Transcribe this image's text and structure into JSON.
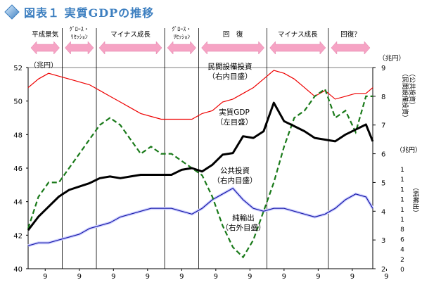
{
  "title": "図表１ 実質GDPの推移",
  "colors": {
    "gdp": "#000000",
    "capex": "#ee0000",
    "public": "#1a1aa8",
    "public_fill": "#cdd0ff",
    "net_exports": "#1a7a1a",
    "arrow": "#f6a3c4",
    "arrow_edge": "#e07aa6",
    "title": "#3d7fc0"
  },
  "phases": [
    {
      "label": "平成景気",
      "from": 0,
      "to": 10
    },
    {
      "label": "ｸﾞﾛｰｽ・\nﾘｾｯｼｮﾝ",
      "from": 10,
      "to": 20
    },
    {
      "label": "マイナス成長",
      "from": 20,
      "to": 40
    },
    {
      "label": "ｸﾞﾛｰｽ・\nﾘｾｯｼｮﾝ",
      "from": 40,
      "to": 50
    },
    {
      "label": "回　復",
      "from": 50,
      "to": 70
    },
    {
      "label": "マイナス成長",
      "from": 70,
      "to": 88
    },
    {
      "label": "回復？",
      "from": 88,
      "to": 101
    }
  ],
  "chart_data": {
    "type": "line",
    "x_tick_labels": [
      "9",
      "9",
      "9",
      "9",
      "9",
      "9",
      "9",
      "9",
      "9",
      "9",
      "9"
    ],
    "left_axis": {
      "unit": "（兆円）",
      "ylim": [
        40,
        52
      ],
      "ticks": [
        40,
        42,
        44,
        46,
        48,
        50,
        52
      ]
    },
    "right_axis_1": {
      "unit": "（兆円）",
      "side_label": "（公共投資）\n（民間設備投資）",
      "ylim": [
        2,
        9
      ],
      "ticks": [
        2,
        3,
        4,
        5,
        6,
        7,
        8,
        9
      ]
    },
    "right_axis_2": {
      "unit": "（兆円）",
      "side_label": "（純輸出）",
      "ylim": [
        0,
        14
      ],
      "tick_labels": [
        "0",
        "2",
        "4",
        "6",
        "8",
        "1",
        "1",
        "1",
        "1",
        "1",
        "1"
      ]
    },
    "series": [
      {
        "name": "実質GDP\n（左目盛）",
        "key": "gdp",
        "axis": "left",
        "x": [
          0,
          3,
          6,
          9,
          12,
          15,
          18,
          21,
          24,
          27,
          30,
          33,
          36,
          39,
          42,
          45,
          48,
          51,
          54,
          57,
          60,
          63,
          66,
          69,
          72,
          75,
          78,
          81,
          84,
          87,
          90,
          93,
          96,
          99,
          101
        ],
        "y": [
          42.3,
          43.1,
          43.7,
          44.3,
          44.7,
          44.9,
          45.1,
          45.4,
          45.5,
          45.4,
          45.5,
          45.6,
          45.6,
          45.6,
          45.6,
          45.9,
          46.0,
          45.8,
          46.2,
          46.8,
          46.9,
          47.9,
          47.8,
          48.2,
          49.9,
          48.8,
          48.5,
          48.2,
          47.8,
          47.7,
          47.6,
          48.0,
          48.3,
          48.6,
          47.6
        ]
      },
      {
        "name": "民間設備投資\n（右内目盛）",
        "key": "capex",
        "axis": "right1",
        "x": [
          0,
          3,
          6,
          9,
          12,
          15,
          18,
          21,
          24,
          27,
          30,
          33,
          36,
          39,
          42,
          45,
          48,
          51,
          54,
          57,
          60,
          63,
          66,
          69,
          72,
          75,
          78,
          81,
          84,
          87,
          90,
          93,
          96,
          99,
          101
        ],
        "y": [
          8.3,
          8.6,
          8.8,
          8.7,
          8.6,
          8.5,
          8.4,
          8.2,
          8.0,
          7.8,
          7.6,
          7.4,
          7.3,
          7.2,
          7.2,
          7.2,
          7.2,
          7.4,
          7.5,
          7.8,
          7.9,
          8.1,
          8.3,
          8.6,
          8.9,
          8.8,
          8.6,
          8.3,
          8.0,
          8.2,
          7.9,
          8.0,
          8.1,
          8.1,
          8.3
        ]
      },
      {
        "name": "公共投資\n（右内目盛）",
        "key": "public",
        "axis": "right1",
        "x": [
          0,
          3,
          6,
          9,
          12,
          15,
          18,
          21,
          24,
          27,
          30,
          33,
          36,
          39,
          42,
          45,
          48,
          51,
          54,
          57,
          60,
          63,
          66,
          69,
          72,
          75,
          78,
          81,
          84,
          87,
          90,
          93,
          96,
          99,
          101
        ],
        "y": [
          2.8,
          2.9,
          2.9,
          3.0,
          3.1,
          3.2,
          3.4,
          3.5,
          3.6,
          3.8,
          3.9,
          4.0,
          4.1,
          4.1,
          4.1,
          4.0,
          3.9,
          4.1,
          4.4,
          4.6,
          4.8,
          4.4,
          4.1,
          4.0,
          4.1,
          4.1,
          4.0,
          3.9,
          3.8,
          3.9,
          4.1,
          4.4,
          4.6,
          4.5,
          4.1
        ]
      },
      {
        "name": "純輸出\n（右外目盛）",
        "key": "net_exports",
        "axis": "right2",
        "x": [
          0,
          3,
          6,
          9,
          12,
          15,
          18,
          21,
          24,
          27,
          30,
          33,
          36,
          39,
          42,
          45,
          48,
          51,
          54,
          57,
          60,
          63,
          66,
          69,
          72,
          75,
          78,
          81,
          84,
          87,
          90,
          93,
          96,
          99,
          101
        ],
        "y": [
          2.8,
          5.0,
          6.0,
          6.0,
          7.0,
          8.0,
          9.0,
          10.0,
          10.5,
          10.0,
          9.0,
          8.0,
          8.5,
          8.0,
          8.0,
          7.5,
          7.0,
          6.5,
          5.0,
          3.0,
          1.5,
          0.8,
          2.0,
          4.0,
          6.0,
          8.5,
          10.5,
          11.0,
          12.0,
          12.5,
          10.5,
          11.0,
          9.5,
          12.0,
          12.0
        ]
      }
    ]
  }
}
